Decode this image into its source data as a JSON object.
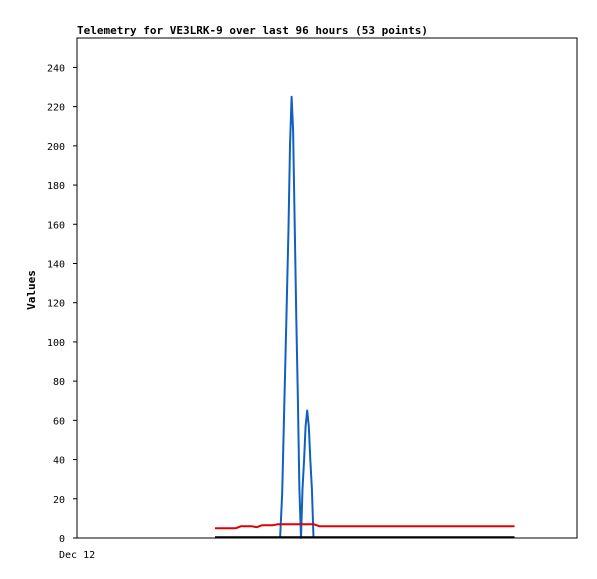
{
  "chart_data": {
    "type": "line",
    "title": "Telemetry for VE3LRK-9 over last 96 hours (53 points)",
    "xlabel": "",
    "ylabel": "Values",
    "x_tick_labels": [
      "Dec 12"
    ],
    "y_ticks": [
      0,
      20,
      40,
      60,
      80,
      100,
      120,
      140,
      160,
      180,
      200,
      220,
      240
    ],
    "ylim": [
      0,
      255
    ],
    "xlim": [
      0,
      96
    ],
    "grid": false,
    "legend": "none",
    "series": [
      {
        "color": "#1060c0",
        "points": [
          [
            39.0,
            0
          ],
          [
            39.4,
            23
          ],
          [
            39.8,
            68
          ],
          [
            40.2,
            112
          ],
          [
            40.6,
            158
          ],
          [
            40.9,
            200
          ],
          [
            41.2,
            225
          ],
          [
            41.5,
            208
          ],
          [
            41.8,
            160
          ],
          [
            42.1,
            112
          ],
          [
            42.4,
            73
          ],
          [
            42.7,
            25
          ],
          [
            43.0,
            0
          ],
          [
            43.3,
            25
          ],
          [
            43.6,
            40
          ],
          [
            43.9,
            57
          ],
          [
            44.2,
            65
          ],
          [
            44.5,
            57
          ],
          [
            44.8,
            40
          ],
          [
            45.1,
            25
          ],
          [
            45.4,
            0
          ]
        ]
      },
      {
        "color": "#e00000",
        "points": [
          [
            26.5,
            5
          ],
          [
            30.5,
            5
          ],
          [
            31.5,
            6
          ],
          [
            33.5,
            6
          ],
          [
            34.5,
            5.5
          ],
          [
            35.5,
            6.5
          ],
          [
            37.5,
            6.5
          ],
          [
            38.5,
            7
          ],
          [
            43,
            7
          ],
          [
            45.5,
            7
          ],
          [
            46.5,
            6
          ],
          [
            50,
            6
          ],
          [
            62,
            6
          ],
          [
            74,
            6
          ],
          [
            84,
            6
          ]
        ]
      },
      {
        "color": "#000000",
        "points": [
          [
            26.5,
            0.4
          ],
          [
            84,
            0.4
          ]
        ]
      }
    ]
  }
}
